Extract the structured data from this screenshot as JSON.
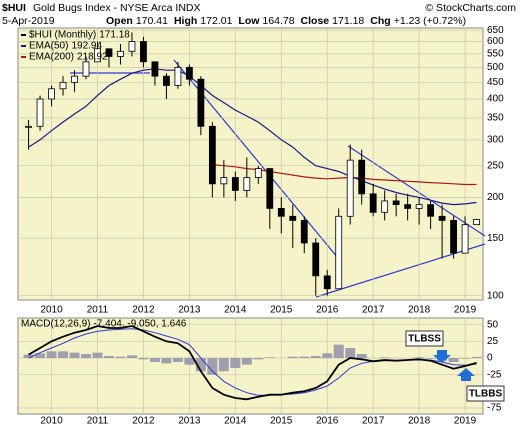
{
  "chart_data": [
    {
      "type": "candlestick",
      "title": "$HUI",
      "subtitle": "Gold Bugs Index - NYSE Arca INDX",
      "source": "© StockCharts.com",
      "date": "5-Apr-2019",
      "quote": [
        {
          "label": "Open",
          "value": 170.41
        },
        {
          "label": "High",
          "value": 172.01
        },
        {
          "label": "Low",
          "value": 164.78
        },
        {
          "label": "Close",
          "value": 171.18
        }
      ],
      "change_label": "Chg",
      "change": "+1.23 (+0.72%)",
      "price_name": "$HUI (Monthly)",
      "log_scale": true,
      "grid": true,
      "x": [
        2009.5,
        2009.75,
        2010.0,
        2010.25,
        2010.5,
        2010.75,
        2011.0,
        2011.25,
        2011.5,
        2011.75,
        2012.0,
        2012.25,
        2012.5,
        2012.75,
        2013.0,
        2013.25,
        2013.5,
        2013.75,
        2014.0,
        2014.25,
        2014.5,
        2014.75,
        2015.0,
        2015.25,
        2015.5,
        2015.75,
        2016.0,
        2016.25,
        2016.5,
        2016.75,
        2017.0,
        2017.25,
        2017.5,
        2017.75,
        2018.0,
        2018.25,
        2018.5,
        2018.75,
        2019.0,
        2019.25
      ],
      "close": [
        330,
        400,
        430,
        450,
        470,
        520,
        570,
        540,
        560,
        600,
        520,
        470,
        440,
        500,
        460,
        330,
        220,
        230,
        210,
        230,
        245,
        185,
        175,
        170,
        145,
        115,
        105,
        175,
        260,
        205,
        180,
        195,
        190,
        185,
        190,
        175,
        170,
        135,
        165,
        171.18
      ],
      "high": [
        345,
        410,
        440,
        470,
        490,
        540,
        600,
        560,
        590,
        640,
        620,
        520,
        480,
        520,
        510,
        470,
        340,
        260,
        240,
        265,
        250,
        245,
        200,
        190,
        175,
        150,
        120,
        185,
        290,
        280,
        220,
        210,
        205,
        205,
        200,
        195,
        190,
        175,
        175,
        172.01
      ],
      "low": [
        280,
        320,
        380,
        410,
        420,
        460,
        520,
        500,
        510,
        540,
        500,
        440,
        400,
        430,
        440,
        310,
        200,
        200,
        195,
        200,
        220,
        160,
        155,
        140,
        135,
        100,
        100,
        105,
        165,
        190,
        175,
        170,
        175,
        170,
        165,
        160,
        130,
        130,
        135,
        164.78
      ],
      "series": [
        {
          "name": "EMA(50)",
          "color": "#1a1a8c",
          "values": [
            285,
            300,
            320,
            340,
            360,
            380,
            410,
            440,
            460,
            480,
            490,
            495,
            490,
            490,
            470,
            440,
            410,
            390,
            370,
            355,
            340,
            320,
            300,
            285,
            265,
            250,
            245,
            240,
            232,
            225,
            218,
            212,
            207,
            203,
            200,
            196,
            192,
            190,
            191,
            192.94
          ]
        },
        {
          "name": "EMA(200)",
          "color": "#b01818",
          "values": [
            null,
            null,
            null,
            null,
            null,
            null,
            null,
            null,
            null,
            null,
            null,
            null,
            null,
            null,
            null,
            null,
            252,
            250,
            248,
            245,
            243,
            240,
            237,
            234,
            231,
            229,
            228,
            229,
            230,
            229,
            227,
            226,
            225,
            224,
            223,
            222,
            221,
            220,
            219,
            218.92
          ]
        }
      ],
      "xlim": [
        2009.27,
        2019.39
      ],
      "xticks": [
        2010,
        2011,
        2012,
        2013,
        2014,
        2015,
        2016,
        2017,
        2018,
        2019
      ],
      "ylim": [
        97,
        660
      ],
      "yticks": [
        650,
        600,
        550,
        500,
        450,
        400,
        350,
        300,
        250,
        200,
        150,
        100
      ]
    },
    {
      "type": "macd",
      "title": "MACD(12,26,9)",
      "readings": "-7.404, -9.050, 1.646",
      "grid": true,
      "x": [
        2009.5,
        2009.75,
        2010.0,
        2010.25,
        2010.5,
        2010.75,
        2011.0,
        2011.25,
        2011.5,
        2011.75,
        2012.0,
        2012.25,
        2012.5,
        2012.75,
        2013.0,
        2013.25,
        2013.5,
        2013.75,
        2014.0,
        2014.25,
        2014.5,
        2014.75,
        2015.0,
        2015.25,
        2015.5,
        2015.75,
        2016.0,
        2016.25,
        2016.5,
        2016.75,
        2017.0,
        2017.25,
        2017.5,
        2017.75,
        2018.0,
        2018.25,
        2018.5,
        2018.75,
        2019.0,
        2019.25
      ],
      "series": [
        {
          "name": "MACD",
          "color": "#000000",
          "values": [
            5,
            15,
            25,
            32,
            38,
            42,
            48,
            45,
            45,
            48,
            40,
            32,
            25,
            22,
            10,
            -20,
            -45,
            -55,
            -60,
            -62,
            -58,
            -55,
            -55,
            -52,
            -50,
            -45,
            -35,
            -10,
            0,
            -2,
            -5,
            -3,
            -4,
            -3,
            -2,
            -4,
            -10,
            -16,
            -12,
            -7.404
          ]
        },
        {
          "name": "Signal",
          "color": "#2a3bd6",
          "values": [
            0,
            8,
            15,
            22,
            30,
            36,
            40,
            42,
            43,
            44,
            42,
            38,
            33,
            28,
            20,
            0,
            -20,
            -35,
            -45,
            -52,
            -56,
            -56,
            -55,
            -54,
            -52,
            -48,
            -42,
            -30,
            -15,
            -8,
            -5,
            -4,
            -4,
            -3,
            -3,
            -3,
            -6,
            -10,
            -11,
            -9.05
          ]
        },
        {
          "name": "Histogram",
          "color": "#8a8aa8",
          "values": [
            5,
            7,
            10,
            10,
            8,
            6,
            8,
            3,
            2,
            4,
            -2,
            -6,
            -8,
            -6,
            -10,
            -20,
            -25,
            -20,
            -15,
            -10,
            -2,
            1,
            0,
            2,
            2,
            3,
            7,
            20,
            15,
            6,
            0,
            1,
            0,
            0,
            1,
            -1,
            -4,
            -6,
            -1,
            1.646
          ]
        }
      ],
      "annotations": [
        "TLBSS",
        "TLBBS"
      ],
      "xlim": [
        2009.27,
        2019.39
      ],
      "xticks": [
        2010,
        2011,
        2012,
        2013,
        2014,
        2015,
        2016,
        2017,
        2018,
        2019
      ],
      "ylim": [
        -84,
        60
      ],
      "yticks": [
        50,
        25,
        0,
        -25,
        -75
      ]
    }
  ]
}
